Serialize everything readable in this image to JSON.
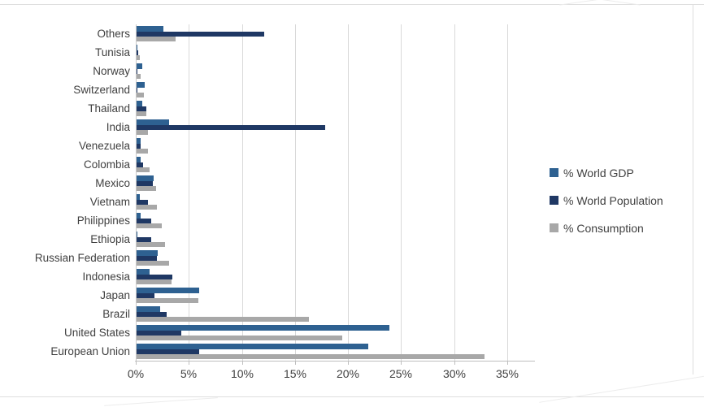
{
  "chart_data": {
    "type": "bar",
    "orientation": "horizontal",
    "title": "",
    "xlabel": "",
    "ylabel": "",
    "xlim": [
      0,
      35
    ],
    "grid": true,
    "legend_position": "right",
    "x_ticks": [
      "0%",
      "5%",
      "10%",
      "15%",
      "20%",
      "25%",
      "30%",
      "35%"
    ],
    "x_tick_values": [
      0,
      5,
      10,
      15,
      20,
      25,
      30,
      35
    ],
    "categories": [
      "Others",
      "Tunisia",
      "Norway",
      "Switzerland",
      "Thailand",
      "India",
      "Venezuela",
      "Colombia",
      "Mexico",
      "Vietnam",
      "Philippines",
      "Ethiopia",
      "Russian Federation",
      "Indonesia",
      "Japan",
      "Brazil",
      "United States",
      "European Union"
    ],
    "series": [
      {
        "name": "% World GDP",
        "color": "#2E6191",
        "values": [
          2.5,
          0.1,
          0.5,
          0.8,
          0.5,
          3.1,
          0.4,
          0.4,
          1.6,
          0.3,
          0.4,
          0.1,
          2.0,
          1.2,
          5.9,
          2.2,
          23.8,
          21.8
        ]
      },
      {
        "name": "% World Population",
        "color": "#1F3864",
        "values": [
          12.0,
          0.15,
          0.1,
          0.1,
          0.9,
          17.8,
          0.4,
          0.6,
          1.5,
          1.1,
          1.4,
          1.4,
          1.9,
          3.4,
          1.7,
          2.8,
          4.2,
          5.9
        ]
      },
      {
        "name": "% Consumption",
        "color": "#A8A8A8",
        "values": [
          3.7,
          0.3,
          0.4,
          0.7,
          0.9,
          1.1,
          1.1,
          1.2,
          1.8,
          1.9,
          2.4,
          2.7,
          3.1,
          3.3,
          5.8,
          16.2,
          19.4,
          32.8
        ]
      }
    ],
    "style": {
      "gridline_color": "#d9d9d9",
      "axis_line_color": "#bfbfbf",
      "label_color": "#3f3f3f"
    }
  }
}
